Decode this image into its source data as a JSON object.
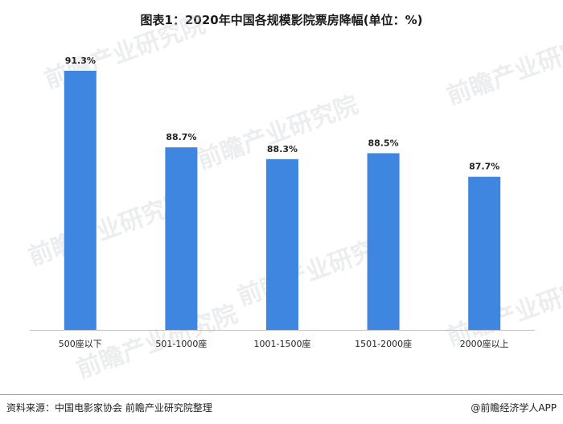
{
  "header": {
    "title": "图表1：2020年中国各规模影院票房降幅(单位：%)"
  },
  "footer": {
    "source": "资料来源：中国电影家协会 前瞻产业研究院整理",
    "brand": "@前瞻经济学人APP"
  },
  "watermark": {
    "text": "前瞻产业研究院"
  },
  "colors": {
    "bar": "#3f86e0",
    "axis": "#bfbfbf"
  },
  "chart_data": {
    "type": "bar",
    "title": "图表1：2020年中国各规模影院票房降幅(单位：%)",
    "categories": [
      "500座以下",
      "501-1000座",
      "1001-1500座",
      "1501-2000座",
      "2000座以上"
    ],
    "values": [
      91.3,
      88.7,
      88.3,
      88.5,
      87.7
    ],
    "value_labels": [
      "91.3%",
      "88.7%",
      "88.3%",
      "88.5%",
      "87.7%"
    ],
    "unit": "%",
    "xlabel": "",
    "ylabel": "",
    "ylim": [
      82.5,
      92.0
    ],
    "grid": false,
    "legend": "none"
  }
}
